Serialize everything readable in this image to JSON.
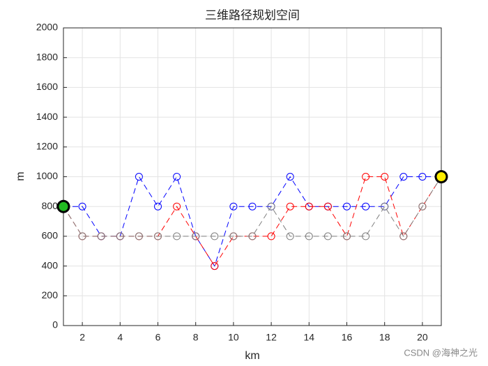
{
  "chart_data": {
    "type": "line",
    "title": "三维路径规划空间",
    "xlabel": "km",
    "ylabel": "m",
    "x": [
      1,
      2,
      3,
      4,
      5,
      6,
      7,
      8,
      9,
      10,
      11,
      12,
      13,
      14,
      15,
      16,
      17,
      18,
      19,
      20,
      21
    ],
    "series": [
      {
        "color": "#0000ff",
        "values": [
          800,
          800,
          600,
          600,
          1000,
          800,
          1000,
          600,
          400,
          800,
          800,
          800,
          1000,
          800,
          800,
          800,
          800,
          800,
          1000,
          1000,
          1000
        ]
      },
      {
        "color": "#ff0000",
        "values": [
          800,
          600,
          600,
          600,
          600,
          600,
          800,
          600,
          400,
          600,
          600,
          600,
          800,
          800,
          800,
          600,
          1000,
          1000,
          600,
          800,
          1000
        ]
      },
      {
        "color": "#808080",
        "values": [
          800,
          600,
          600,
          600,
          600,
          600,
          600,
          600,
          600,
          600,
          600,
          800,
          600,
          600,
          600,
          600,
          600,
          800,
          600,
          800,
          1000
        ]
      }
    ],
    "start": {
      "x": 1,
      "y": 800,
      "color": "#22bb22"
    },
    "end": {
      "x": 21,
      "y": 1000,
      "color": "#ffee00"
    },
    "xlim": [
      1,
      21
    ],
    "xticks": [
      2,
      4,
      6,
      8,
      10,
      12,
      14,
      16,
      18,
      20
    ],
    "ylim": [
      0,
      2000
    ],
    "yticks": [
      0,
      200,
      400,
      600,
      800,
      1000,
      1200,
      1400,
      1600,
      1800,
      2000
    ],
    "grid": true,
    "watermark": "CSDN @海神之光"
  }
}
